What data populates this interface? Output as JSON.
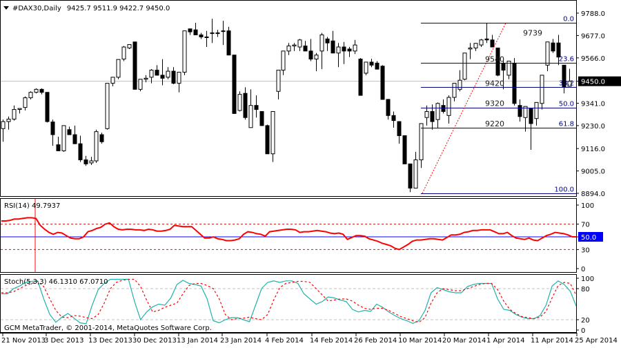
{
  "header": {
    "symbol": "#DAX30,Daily",
    "ohlc": "9425.7 9511.9 9422.7 9450.0"
  },
  "footer": {
    "copyright": "GCM MetaTrader, © 2001-2014, MetaQuotes Software Corp."
  },
  "indicators": {
    "rsi_label": "RSI(14) 49.7937",
    "stoch_label": "Stoch(5,3,3) 46.1310 67.0710"
  },
  "colors": {
    "background": "#ffffff",
    "grid_border": "#000000",
    "bid_line": "#c0c0c0",
    "fib_line": "#000080",
    "fib_trend": "#ff0000",
    "rsi_line": "#ff0000",
    "rsi_mid": "#0000ff",
    "stoch_main": "#20b2aa",
    "stoch_signal": "#ff0000",
    "price_badge_bg": "#000000",
    "rsi_badge_bg": "#0000ff"
  },
  "chart_data": [
    {
      "type": "candlestick",
      "title": "#DAX30,Daily",
      "ylabel": "Price",
      "ylim": [
        8894.0,
        9788.0
      ],
      "y_ticks": [
        "9788.0",
        "9677.0",
        "9566.0",
        "9450.0",
        "9341.0",
        "9230.0",
        "9116.0",
        "9005.0",
        "8894.0"
      ],
      "current_price": "9450.0",
      "x_ticks": [
        "21 Nov 2013",
        "3 Dec 2013",
        "13 Dec 2013",
        "30 Dec 2013",
        "13 Jan 2014",
        "23 Jan 2014",
        "4 Feb 2014",
        "14 Feb 2014",
        "26 Feb 2014",
        "10 Mar 2014",
        "20 Mar 2014",
        "1 Apr 2014",
        "11 Apr 2014",
        "25 Apr 2014"
      ],
      "candles": [
        [
          9215,
          9260,
          9150,
          9250
        ],
        [
          9250,
          9275,
          9210,
          9262
        ],
        [
          9262,
          9330,
          9255,
          9310
        ],
        [
          9310,
          9315,
          9290,
          9315
        ],
        [
          9320,
          9375,
          9305,
          9368
        ],
        [
          9368,
          9400,
          9360,
          9395
        ],
        [
          9395,
          9415,
          9390,
          9410
        ],
        [
          9410,
          9415,
          9385,
          9395
        ],
        [
          9395,
          9395,
          9245,
          9250
        ],
        [
          9248,
          9260,
          9130,
          9185
        ],
        [
          9135,
          9175,
          9120,
          9105
        ],
        [
          9105,
          9230,
          9100,
          9230
        ],
        [
          9210,
          9225,
          9195,
          9185
        ],
        [
          9185,
          9230,
          9140,
          9140
        ],
        [
          9140,
          9180,
          9050,
          9060
        ],
        [
          9060,
          9080,
          9030,
          9040
        ],
        [
          9045,
          9075,
          9035,
          9055
        ],
        [
          9055,
          9210,
          9045,
          9200
        ],
        [
          9185,
          9195,
          9140,
          9150
        ],
        [
          9215,
          9440,
          9210,
          9440
        ],
        [
          9440,
          9470,
          9425,
          9470
        ],
        [
          9470,
          9555,
          9460,
          9558
        ],
        [
          9560,
          9625,
          9550,
          9620
        ],
        [
          9615,
          9630,
          9610,
          9632
        ],
        [
          9645,
          9645,
          9410,
          9410
        ],
        [
          9410,
          9450,
          9400,
          9460
        ],
        [
          9460,
          9480,
          9445,
          9465
        ],
        [
          9470,
          9510,
          9440,
          9505
        ],
        [
          9505,
          9530,
          9490,
          9480
        ],
        [
          9480,
          9560,
          9430,
          9465
        ],
        [
          9470,
          9520,
          9460,
          9500
        ],
        [
          9500,
          9520,
          9435,
          9440
        ],
        [
          9440,
          9495,
          9395,
          9495
        ],
        [
          9495,
          9700,
          9480,
          9700
        ],
        [
          9710,
          9705,
          9680,
          9695
        ],
        [
          9705,
          9740,
          9700,
          9680
        ],
        [
          9680,
          9690,
          9660,
          9670
        ],
        [
          9670,
          9700,
          9620,
          9670
        ],
        [
          9690,
          9760,
          9640,
          9690
        ],
        [
          9690,
          9705,
          9670,
          9690
        ],
        [
          9700,
          9750,
          9630,
          9700
        ],
        [
          9700,
          9720,
          9580,
          9580
        ],
        [
          9580,
          9580,
          9290,
          9290
        ],
        [
          9305,
          9400,
          9300,
          9385
        ],
        [
          9390,
          9420,
          9260,
          9270
        ],
        [
          9220,
          9410,
          9230,
          9330
        ],
        [
          9330,
          9380,
          9270,
          9310
        ],
        [
          9300,
          9300,
          9230,
          9230
        ],
        [
          9230,
          9235,
          9090,
          9090
        ],
        [
          9090,
          9300,
          9050,
          9300
        ],
        [
          9400,
          9500,
          9360,
          9505
        ],
        [
          9505,
          9585,
          9480,
          9600
        ],
        [
          9600,
          9640,
          9580,
          9625
        ],
        [
          9625,
          9640,
          9600,
          9630
        ],
        [
          9620,
          9660,
          9600,
          9655
        ],
        [
          9625,
          9650,
          9610,
          9600
        ],
        [
          9600,
          9660,
          9550,
          9560
        ],
        [
          9560,
          9590,
          9500,
          9580
        ],
        [
          9600,
          9690,
          9510,
          9680
        ],
        [
          9660,
          9670,
          9600,
          9640
        ],
        [
          9650,
          9700,
          9610,
          9590
        ],
        [
          9590,
          9640,
          9520,
          9620
        ],
        [
          9620,
          9645,
          9535,
          9600
        ],
        [
          9610,
          9620,
          9570,
          9600
        ],
        [
          9600,
          9655,
          9585,
          9630
        ],
        [
          9560,
          9565,
          9380,
          9380
        ],
        [
          9490,
          9545,
          9480,
          9545
        ],
        [
          9545,
          9562,
          9520,
          9530
        ],
        [
          9540,
          9550,
          9510,
          9510
        ],
        [
          9525,
          9530,
          9360,
          9360
        ],
        [
          9360,
          9330,
          9260,
          9280
        ],
        [
          9280,
          9300,
          9220,
          9255
        ],
        [
          9250,
          9250,
          9140,
          9180
        ],
        [
          9180,
          9180,
          9050,
          9040
        ],
        [
          9040,
          8950,
          8900,
          8920
        ],
        [
          8920,
          9100,
          8920,
          9060
        ],
        [
          9060,
          9220,
          9020,
          9240
        ],
        [
          9270,
          9330,
          9230,
          9300
        ],
        [
          9300,
          9335,
          9210,
          9250
        ],
        [
          9260,
          9345,
          9220,
          9340
        ],
        [
          9330,
          9360,
          9290,
          9300
        ],
        [
          9280,
          9380,
          9240,
          9370
        ],
        [
          9370,
          9435,
          9350,
          9440
        ],
        [
          9410,
          9505,
          9400,
          9455
        ],
        [
          9460,
          9590,
          9455,
          9590
        ],
        [
          9610,
          9640,
          9560,
          9615
        ],
        [
          9615,
          9640,
          9600,
          9638
        ],
        [
          9630,
          9660,
          9620,
          9655
        ],
        [
          9660,
          9740,
          9640,
          9655
        ],
        [
          9655,
          9680,
          9625,
          9620
        ],
        [
          9615,
          9615,
          9475,
          9480
        ],
        [
          9540,
          9560,
          9410,
          9505
        ],
        [
          9480,
          9550,
          9460,
          9550
        ],
        [
          9540,
          9565,
          9330,
          9340
        ],
        [
          9330,
          9360,
          9250,
          9275
        ],
        [
          9270,
          9300,
          9200,
          9325
        ],
        [
          9315,
          9310,
          9110,
          9240
        ],
        [
          9265,
          9330,
          9230,
          9345
        ],
        [
          9340,
          9480,
          9310,
          9480
        ],
        [
          9530,
          9640,
          9500,
          9645
        ],
        [
          9640,
          9660,
          9590,
          9600
        ],
        [
          9640,
          9680,
          9530,
          9570
        ],
        [
          9530,
          9530,
          9390,
          9420
        ],
        [
          9425,
          9512,
          9423,
          9450
        ]
      ],
      "fibonacci": {
        "high": 9739,
        "low": 8894,
        "levels": [
          {
            "pct": "0.0",
            "price": 9739
          },
          {
            "pct": "23.6",
            "price": 9540
          },
          {
            "pct": "38.2",
            "price": 9420
          },
          {
            "pct": "50.0",
            "price": 9320
          },
          {
            "pct": "61.8",
            "price": 9220
          },
          {
            "pct": "100.0",
            "price": 8894
          }
        ],
        "price_labels": [
          "9739",
          "9540",
          "9420",
          "9320",
          "9220"
        ]
      }
    },
    {
      "type": "line",
      "title": "RSI(14) 49.7937",
      "ylim": [
        0,
        100
      ],
      "y_ticks": [
        "100",
        "70",
        "50.0",
        "30",
        "0"
      ],
      "levels": [
        70,
        50,
        30
      ],
      "series": [
        {
          "name": "RSI(14)",
          "values": [
            75,
            75,
            76,
            78,
            78,
            79,
            80,
            80,
            79,
            68,
            62,
            57,
            54,
            57,
            56,
            52,
            48,
            47,
            47,
            50,
            58,
            60,
            63,
            65,
            70,
            72,
            66,
            62,
            61,
            62,
            62,
            61,
            61,
            60,
            62,
            61,
            59,
            59,
            60,
            62,
            68,
            67,
            66,
            66,
            66,
            60,
            54,
            48,
            48,
            50,
            47,
            46,
            44,
            44,
            45,
            47,
            54,
            58,
            57,
            55,
            54,
            51,
            58,
            59,
            60,
            61,
            62,
            62,
            61,
            57,
            58,
            58,
            59,
            60,
            59,
            58,
            56,
            55,
            56,
            54,
            46,
            49,
            52,
            52,
            51,
            47,
            45,
            43,
            40,
            38,
            36,
            32,
            30,
            34,
            38,
            43,
            45,
            45,
            46,
            47,
            47,
            46,
            45,
            49,
            53,
            53,
            54,
            57,
            58,
            60,
            60,
            61,
            61,
            61,
            58,
            55,
            55,
            57,
            52,
            48,
            47,
            46,
            48,
            45,
            44,
            48,
            52,
            54,
            57,
            56,
            55,
            53,
            50,
            50
          ]
        }
      ]
    },
    {
      "type": "line",
      "title": "Stoch(5,3,3) 46.1310 67.0710",
      "ylim": [
        0,
        100
      ],
      "y_ticks": [
        "100",
        "80",
        "20",
        "0"
      ],
      "levels": [
        80,
        20
      ],
      "series": [
        {
          "name": "Main",
          "values": [
            70,
            70,
            80,
            85,
            92,
            94,
            95,
            60,
            30,
            15,
            25,
            32,
            23,
            14,
            12,
            48,
            78,
            90,
            98,
            98,
            98,
            98,
            55,
            20,
            35,
            45,
            50,
            48,
            62,
            88,
            96,
            90,
            88,
            85,
            60,
            18,
            14,
            20,
            24,
            24,
            20,
            16,
            48,
            80,
            92,
            95,
            92,
            95,
            95,
            90,
            70,
            60,
            50,
            55,
            64,
            62,
            58,
            55,
            40,
            35,
            38,
            36,
            50,
            44,
            35,
            28,
            22,
            18,
            13,
            18,
            38,
            72,
            82,
            78,
            74,
            72,
            72,
            84,
            88,
            90,
            90,
            90,
            60,
            40,
            38,
            30,
            25,
            22,
            22,
            28,
            48,
            85,
            95,
            88,
            75,
            46
          ]
        },
        {
          "name": "Signal",
          "values": [
            72,
            72,
            74,
            80,
            86,
            90,
            94,
            84,
            60,
            38,
            25,
            24,
            28,
            27,
            24,
            22,
            30,
            52,
            80,
            92,
            96,
            98,
            98,
            84,
            58,
            35,
            38,
            44,
            48,
            52,
            70,
            86,
            90,
            90,
            86,
            80,
            60,
            30,
            20,
            22,
            23,
            25,
            22,
            20,
            30,
            58,
            82,
            90,
            92,
            94,
            94,
            92,
            80,
            68,
            56,
            58,
            60,
            60,
            56,
            48,
            42,
            40,
            42,
            42,
            38,
            32,
            26,
            22,
            18,
            15,
            24,
            52,
            72,
            80,
            78,
            76,
            76,
            80,
            84,
            88,
            90,
            90,
            78,
            56,
            40,
            32,
            26,
            24,
            22,
            25,
            36,
            62,
            86,
            92,
            90,
            67
          ]
        }
      ]
    }
  ]
}
